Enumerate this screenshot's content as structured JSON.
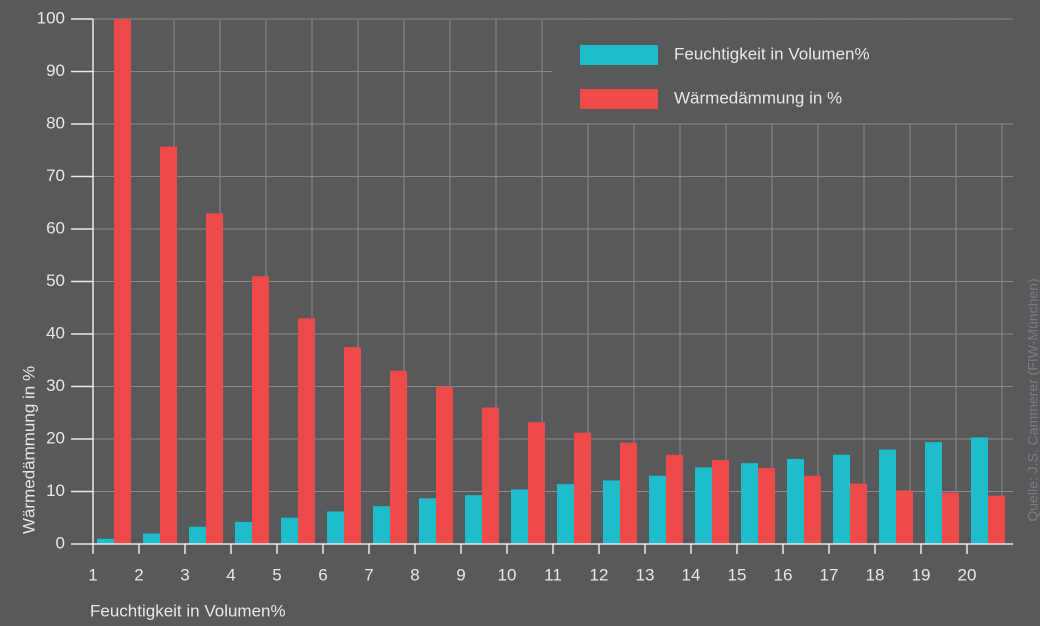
{
  "chart_data": {
    "type": "bar",
    "xlabel": "Feuchtigkeit in Volumen%",
    "ylabel": "Wärmedämmung in %",
    "source": "Quelle: J.S. Cammerer (FIW-München)",
    "categories": [
      "1",
      "2",
      "3",
      "4",
      "5",
      "6",
      "7",
      "8",
      "9",
      "10",
      "11",
      "12",
      "13",
      "14",
      "15",
      "16",
      "17",
      "18",
      "19",
      "20"
    ],
    "series": [
      {
        "name": "Feuchtigkeit in Volumen%",
        "color": "#1fbccb",
        "values": [
          1,
          2,
          3.3,
          4.2,
          5,
          6.2,
          7.2,
          8.7,
          9.3,
          10.4,
          11.4,
          12.1,
          13,
          14.6,
          15.4,
          16.2,
          17,
          18,
          19.4,
          20.3
        ]
      },
      {
        "name": "Wärmedämmung in %",
        "color": "#ef4a4a",
        "values": [
          100,
          75.7,
          63,
          51,
          43,
          37.5,
          33,
          30,
          26,
          23.2,
          21.2,
          19.3,
          17,
          16,
          14.5,
          13,
          11.5,
          10.2,
          9.8,
          9.2
        ]
      }
    ],
    "ylim": [
      0,
      100
    ],
    "yticks": [
      0,
      10,
      20,
      30,
      40,
      50,
      60,
      70,
      80,
      90,
      100
    ],
    "grid": true,
    "legend": "upper right"
  }
}
